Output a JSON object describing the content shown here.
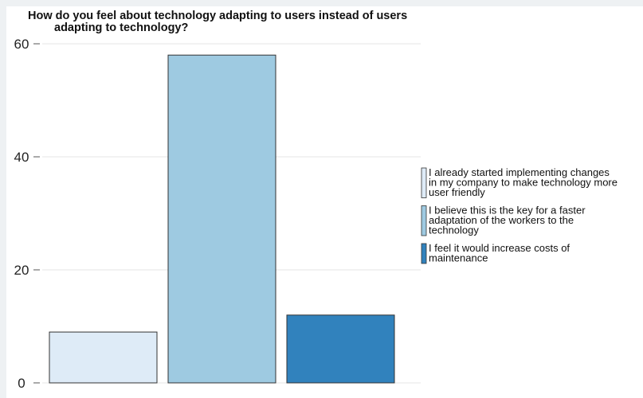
{
  "chart_data": {
    "type": "bar",
    "title_lines": [
      "How do you feel about technology adapting to users instead of users",
      "adapting to technology?"
    ],
    "xlabel": "",
    "ylabel": "",
    "ylim": [
      0,
      60
    ],
    "yticks": [
      0,
      20,
      40,
      60
    ],
    "grid": true,
    "legend_position": "right",
    "series": [
      {
        "name": "I already started implementing changes in my company to make technology more user friendly",
        "legend_lines": [
          "I already started implementing changes",
          "in my company to make technology more",
          "user friendly"
        ],
        "value": 9,
        "color": "#deebf7"
      },
      {
        "name": "I believe this is the key for a faster adaptation of the workers to the technology",
        "legend_lines": [
          "I believe this is the key for a faster",
          "adaptation of the workers to the",
          "technology"
        ],
        "value": 58,
        "color": "#9ecae1"
      },
      {
        "name": "I feel it would increase costs of maintenance",
        "legend_lines": [
          "I feel it would increase costs of",
          "maintenance"
        ],
        "value": 12,
        "color": "#3182bd"
      }
    ]
  }
}
